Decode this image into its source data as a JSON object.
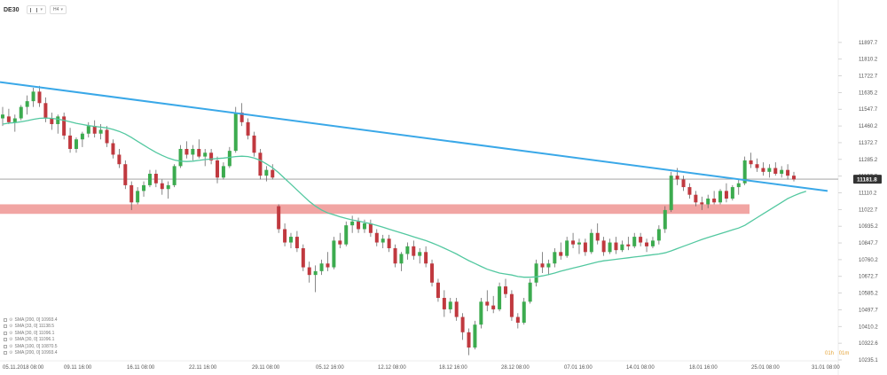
{
  "header": {
    "symbol": "DE30",
    "chart_type_btn": "",
    "interval_btn": "H4"
  },
  "colors": {
    "bull": "#3cab4f",
    "bear": "#c0393f",
    "sma": "#53c8a0",
    "trendline": "#3aa8e8",
    "zone": "#f0a09e",
    "current_price_line": "#999999",
    "current_price_bg": "#333333",
    "timeframe_text": "#e5a43a"
  },
  "legend": [
    "SMA [200, 0] 10993.4",
    "SMA [33, 0] 11138.5",
    "SMA [30, 0] 11096.1",
    "SMA [30, 0] 11096.1",
    "SMA [100, 0] 10870.5",
    "SMA [200, 0] 10993.4"
  ],
  "timeframe": [
    "01h",
    "01m"
  ],
  "chart_data": {
    "type": "candlestick",
    "title": "",
    "price_range": [
      10235.1,
      11985.2
    ],
    "y_ticks": [
      "11897.7",
      "11810.2",
      "11722.7",
      "11635.2",
      "11547.7",
      "11460.2",
      "11372.7",
      "11285.2",
      "11197.7",
      "11110.2",
      "11022.7",
      "10935.2",
      "10847.7",
      "10760.2",
      "10672.7",
      "10585.2",
      "10497.7",
      "10410.2",
      "10322.6",
      "10235.1"
    ],
    "x_ticks": [
      "05.11.2018 08:00",
      "09.11 16:00",
      "16.11 08:00",
      "22.11 16:00",
      "29.11 08:00",
      "05.12 16:00",
      "12.12 08:00",
      "18.12 16:00",
      "28.12 08:00",
      "07.01 16:00",
      "14.01 08:00",
      "18.01 16:00",
      "25.01 08:00",
      "31.01 08:00"
    ],
    "current_price": "11181.8",
    "trendline": {
      "start_price": 11690,
      "end_price": 11120
    },
    "support_zone": {
      "low": 11000,
      "high": 11050
    },
    "candles": [
      {
        "o": 11500,
        "h": 11560,
        "l": 11460,
        "c": 11520
      },
      {
        "o": 11510,
        "h": 11550,
        "l": 11470,
        "c": 11480
      },
      {
        "o": 11480,
        "h": 11520,
        "l": 11430,
        "c": 11500
      },
      {
        "o": 11500,
        "h": 11570,
        "l": 11490,
        "c": 11560
      },
      {
        "o": 11560,
        "h": 11620,
        "l": 11520,
        "c": 11590
      },
      {
        "o": 11590,
        "h": 11660,
        "l": 11560,
        "c": 11640
      },
      {
        "o": 11640,
        "h": 11670,
        "l": 11560,
        "c": 11580
      },
      {
        "o": 11580,
        "h": 11610,
        "l": 11480,
        "c": 11500
      },
      {
        "o": 11500,
        "h": 11530,
        "l": 11440,
        "c": 11470
      },
      {
        "o": 11470,
        "h": 11520,
        "l": 11420,
        "c": 11510
      },
      {
        "o": 11510,
        "h": 11530,
        "l": 11390,
        "c": 11410
      },
      {
        "o": 11410,
        "h": 11450,
        "l": 11320,
        "c": 11340
      },
      {
        "o": 11340,
        "h": 11400,
        "l": 11320,
        "c": 11390
      },
      {
        "o": 11390,
        "h": 11430,
        "l": 11350,
        "c": 11420
      },
      {
        "o": 11420,
        "h": 11480,
        "l": 11400,
        "c": 11460
      },
      {
        "o": 11460,
        "h": 11490,
        "l": 11400,
        "c": 11420
      },
      {
        "o": 11420,
        "h": 11470,
        "l": 11390,
        "c": 11440
      },
      {
        "o": 11440,
        "h": 11460,
        "l": 11350,
        "c": 11370
      },
      {
        "o": 11370,
        "h": 11390,
        "l": 11290,
        "c": 11310
      },
      {
        "o": 11310,
        "h": 11340,
        "l": 11240,
        "c": 11260
      },
      {
        "o": 11260,
        "h": 11280,
        "l": 11130,
        "c": 11150
      },
      {
        "o": 11150,
        "h": 11170,
        "l": 11020,
        "c": 11060
      },
      {
        "o": 11060,
        "h": 11140,
        "l": 11050,
        "c": 11120
      },
      {
        "o": 11120,
        "h": 11170,
        "l": 11090,
        "c": 11150
      },
      {
        "o": 11150,
        "h": 11230,
        "l": 11140,
        "c": 11210
      },
      {
        "o": 11210,
        "h": 11230,
        "l": 11140,
        "c": 11160
      },
      {
        "o": 11160,
        "h": 11180,
        "l": 11100,
        "c": 11130
      },
      {
        "o": 11130,
        "h": 11170,
        "l": 11080,
        "c": 11150
      },
      {
        "o": 11150,
        "h": 11260,
        "l": 11140,
        "c": 11250
      },
      {
        "o": 11250,
        "h": 11360,
        "l": 11240,
        "c": 11340
      },
      {
        "o": 11340,
        "h": 11380,
        "l": 11290,
        "c": 11310
      },
      {
        "o": 11310,
        "h": 11360,
        "l": 11280,
        "c": 11340
      },
      {
        "o": 11340,
        "h": 11390,
        "l": 11290,
        "c": 11300
      },
      {
        "o": 11300,
        "h": 11340,
        "l": 11250,
        "c": 11320
      },
      {
        "o": 11320,
        "h": 11340,
        "l": 11260,
        "c": 11280
      },
      {
        "o": 11280,
        "h": 11300,
        "l": 11160,
        "c": 11190
      },
      {
        "o": 11190,
        "h": 11270,
        "l": 11180,
        "c": 11250
      },
      {
        "o": 11250,
        "h": 11350,
        "l": 11240,
        "c": 11330
      },
      {
        "o": 11330,
        "h": 11560,
        "l": 11320,
        "c": 11530
      },
      {
        "o": 11530,
        "h": 11580,
        "l": 11460,
        "c": 11480
      },
      {
        "o": 11480,
        "h": 11500,
        "l": 11390,
        "c": 11410
      },
      {
        "o": 11410,
        "h": 11430,
        "l": 11300,
        "c": 11320
      },
      {
        "o": 11320,
        "h": 11340,
        "l": 11180,
        "c": 11200
      },
      {
        "o": 11200,
        "h": 11250,
        "l": 11170,
        "c": 11230
      },
      {
        "o": 11230,
        "h": 11260,
        "l": 11180,
        "c": 11190
      },
      {
        "o": 11040,
        "h": 11050,
        "l": 10900,
        "c": 10920
      },
      {
        "o": 10920,
        "h": 10950,
        "l": 10830,
        "c": 10850
      },
      {
        "o": 10850,
        "h": 10900,
        "l": 10820,
        "c": 10880
      },
      {
        "o": 10880,
        "h": 10910,
        "l": 10800,
        "c": 10820
      },
      {
        "o": 10820,
        "h": 10840,
        "l": 10700,
        "c": 10720
      },
      {
        "o": 10720,
        "h": 10750,
        "l": 10640,
        "c": 10680
      },
      {
        "o": 10680,
        "h": 10730,
        "l": 10590,
        "c": 10700
      },
      {
        "o": 10700,
        "h": 10760,
        "l": 10680,
        "c": 10740
      },
      {
        "o": 10740,
        "h": 10800,
        "l": 10700,
        "c": 10720
      },
      {
        "o": 10720,
        "h": 10880,
        "l": 10710,
        "c": 10860
      },
      {
        "o": 10860,
        "h": 10900,
        "l": 10820,
        "c": 10840
      },
      {
        "o": 10840,
        "h": 10960,
        "l": 10830,
        "c": 10940
      },
      {
        "o": 10940,
        "h": 10990,
        "l": 10900,
        "c": 10960
      },
      {
        "o": 10960,
        "h": 10980,
        "l": 10900,
        "c": 10920
      },
      {
        "o": 10920,
        "h": 10970,
        "l": 10900,
        "c": 10950
      },
      {
        "o": 10950,
        "h": 10970,
        "l": 10880,
        "c": 10900
      },
      {
        "o": 10900,
        "h": 10920,
        "l": 10830,
        "c": 10850
      },
      {
        "o": 10850,
        "h": 10890,
        "l": 10820,
        "c": 10870
      },
      {
        "o": 10870,
        "h": 10890,
        "l": 10800,
        "c": 10820
      },
      {
        "o": 10820,
        "h": 10840,
        "l": 10720,
        "c": 10740
      },
      {
        "o": 10740,
        "h": 10800,
        "l": 10700,
        "c": 10790
      },
      {
        "o": 10790,
        "h": 10850,
        "l": 10760,
        "c": 10830
      },
      {
        "o": 10830,
        "h": 10860,
        "l": 10760,
        "c": 10780
      },
      {
        "o": 10780,
        "h": 10820,
        "l": 10740,
        "c": 10800
      },
      {
        "o": 10800,
        "h": 10830,
        "l": 10720,
        "c": 10740
      },
      {
        "o": 10740,
        "h": 10760,
        "l": 10620,
        "c": 10640
      },
      {
        "o": 10640,
        "h": 10660,
        "l": 10540,
        "c": 10560
      },
      {
        "o": 10560,
        "h": 10600,
        "l": 10460,
        "c": 10500
      },
      {
        "o": 10500,
        "h": 10560,
        "l": 10480,
        "c": 10540
      },
      {
        "o": 10540,
        "h": 10560,
        "l": 10440,
        "c": 10460
      },
      {
        "o": 10460,
        "h": 10480,
        "l": 10340,
        "c": 10380
      },
      {
        "o": 10380,
        "h": 10400,
        "l": 10260,
        "c": 10300
      },
      {
        "o": 10300,
        "h": 10440,
        "l": 10290,
        "c": 10420
      },
      {
        "o": 10420,
        "h": 10560,
        "l": 10400,
        "c": 10540
      },
      {
        "o": 10540,
        "h": 10600,
        "l": 10490,
        "c": 10520
      },
      {
        "o": 10520,
        "h": 10570,
        "l": 10480,
        "c": 10500
      },
      {
        "o": 10500,
        "h": 10640,
        "l": 10490,
        "c": 10620
      },
      {
        "o": 10620,
        "h": 10660,
        "l": 10560,
        "c": 10580
      },
      {
        "o": 10580,
        "h": 10600,
        "l": 10440,
        "c": 10460
      },
      {
        "o": 10460,
        "h": 10480,
        "l": 10400,
        "c": 10430
      },
      {
        "o": 10430,
        "h": 10560,
        "l": 10420,
        "c": 10540
      },
      {
        "o": 10540,
        "h": 10660,
        "l": 10530,
        "c": 10640
      },
      {
        "o": 10640,
        "h": 10760,
        "l": 10620,
        "c": 10740
      },
      {
        "o": 10740,
        "h": 10800,
        "l": 10690,
        "c": 10720
      },
      {
        "o": 10720,
        "h": 10760,
        "l": 10680,
        "c": 10740
      },
      {
        "o": 10740,
        "h": 10820,
        "l": 10720,
        "c": 10800
      },
      {
        "o": 10800,
        "h": 10850,
        "l": 10760,
        "c": 10780
      },
      {
        "o": 10780,
        "h": 10880,
        "l": 10770,
        "c": 10860
      },
      {
        "o": 10860,
        "h": 10900,
        "l": 10820,
        "c": 10840
      },
      {
        "o": 10840,
        "h": 10870,
        "l": 10790,
        "c": 10850
      },
      {
        "o": 10850,
        "h": 10870,
        "l": 10780,
        "c": 10800
      },
      {
        "o": 10800,
        "h": 10920,
        "l": 10790,
        "c": 10900
      },
      {
        "o": 10900,
        "h": 10950,
        "l": 10840,
        "c": 10860
      },
      {
        "o": 10860,
        "h": 10880,
        "l": 10780,
        "c": 10800
      },
      {
        "o": 10800,
        "h": 10870,
        "l": 10790,
        "c": 10850
      },
      {
        "o": 10850,
        "h": 10880,
        "l": 10790,
        "c": 10810
      },
      {
        "o": 10810,
        "h": 10860,
        "l": 10800,
        "c": 10840
      },
      {
        "o": 10840,
        "h": 10880,
        "l": 10810,
        "c": 10830
      },
      {
        "o": 10830,
        "h": 10900,
        "l": 10820,
        "c": 10880
      },
      {
        "o": 10880,
        "h": 10900,
        "l": 10830,
        "c": 10850
      },
      {
        "o": 10850,
        "h": 10870,
        "l": 10800,
        "c": 10830
      },
      {
        "o": 10830,
        "h": 10880,
        "l": 10820,
        "c": 10860
      },
      {
        "o": 10860,
        "h": 10940,
        "l": 10840,
        "c": 10920
      },
      {
        "o": 10920,
        "h": 11040,
        "l": 10900,
        "c": 11020
      },
      {
        "o": 11020,
        "h": 11220,
        "l": 11010,
        "c": 11200
      },
      {
        "o": 11200,
        "h": 11240,
        "l": 11150,
        "c": 11180
      },
      {
        "o": 11180,
        "h": 11200,
        "l": 11120,
        "c": 11140
      },
      {
        "o": 11140,
        "h": 11160,
        "l": 11080,
        "c": 11100
      },
      {
        "o": 11100,
        "h": 11120,
        "l": 11040,
        "c": 11060
      },
      {
        "o": 11060,
        "h": 11090,
        "l": 11020,
        "c": 11050
      },
      {
        "o": 11050,
        "h": 11100,
        "l": 11030,
        "c": 11080
      },
      {
        "o": 11080,
        "h": 11120,
        "l": 11050,
        "c": 11060
      },
      {
        "o": 11060,
        "h": 11130,
        "l": 11050,
        "c": 11120
      },
      {
        "o": 11120,
        "h": 11160,
        "l": 11060,
        "c": 11080
      },
      {
        "o": 11080,
        "h": 11150,
        "l": 11070,
        "c": 11140
      },
      {
        "o": 11140,
        "h": 11180,
        "l": 11100,
        "c": 11160
      },
      {
        "o": 11160,
        "h": 11300,
        "l": 11150,
        "c": 11280
      },
      {
        "o": 11280,
        "h": 11320,
        "l": 11240,
        "c": 11260
      },
      {
        "o": 11260,
        "h": 11290,
        "l": 11220,
        "c": 11240
      },
      {
        "o": 11240,
        "h": 11270,
        "l": 11200,
        "c": 11220
      },
      {
        "o": 11220,
        "h": 11260,
        "l": 11190,
        "c": 11240
      },
      {
        "o": 11240,
        "h": 11270,
        "l": 11200,
        "c": 11210
      },
      {
        "o": 11210,
        "h": 11250,
        "l": 11190,
        "c": 11230
      },
      {
        "o": 11230,
        "h": 11260,
        "l": 11180,
        "c": 11200
      },
      {
        "o": 11200,
        "h": 11220,
        "l": 11170,
        "c": 11180
      }
    ],
    "sma": [
      11470,
      11475,
      11478,
      11482,
      11488,
      11495,
      11500,
      11502,
      11500,
      11496,
      11490,
      11482,
      11474,
      11468,
      11462,
      11458,
      11454,
      11450,
      11442,
      11432,
      11418,
      11400,
      11380,
      11360,
      11340,
      11322,
      11306,
      11292,
      11282,
      11276,
      11274,
      11276,
      11280,
      11284,
      11287,
      11290,
      11292,
      11296,
      11300,
      11302,
      11300,
      11292,
      11280,
      11262,
      11242,
      11215,
      11185,
      11155,
      11125,
      11095,
      11065,
      11040,
      11020,
      11005,
      10995,
      10985,
      10976,
      10968,
      10962,
      10955,
      10948,
      10940,
      10930,
      10920,
      10910,
      10900,
      10890,
      10880,
      10870,
      10860,
      10848,
      10835,
      10820,
      10805,
      10790,
      10772,
      10755,
      10740,
      10725,
      10710,
      10700,
      10690,
      10685,
      10680,
      10672,
      10668,
      10668,
      10670,
      10675,
      10682,
      10690,
      10700,
      10708,
      10716,
      10724,
      10732,
      10740,
      10748,
      10754,
      10758,
      10762,
      10766,
      10770,
      10774,
      10778,
      10782,
      10786,
      10790,
      10796,
      10806,
      10818,
      10830,
      10842,
      10854,
      10866,
      10876,
      10886,
      10896,
      10906,
      10916,
      10926,
      10940,
      10960,
      10980,
      11000,
      11020,
      11040,
      11060,
      11080,
      11095,
      11108,
      11118
    ]
  }
}
